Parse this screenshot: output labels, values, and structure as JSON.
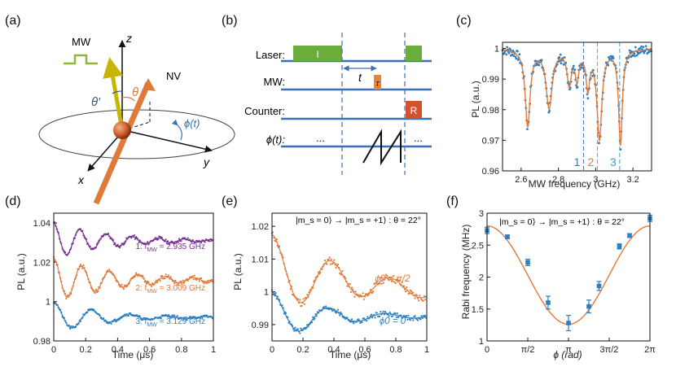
{
  "panels": {
    "a": {
      "label": "(a)",
      "mw": "MW",
      "nv": "NV",
      "z": "z",
      "x": "x",
      "y": "y",
      "theta_prime": "θ′",
      "theta": "θ",
      "phi_t": "ϕ(t)",
      "colors": {
        "mw": "#8db83a",
        "nv": "#e07a3a",
        "sphere": "#d0622e"
      }
    },
    "b": {
      "label": "(b)",
      "rows": [
        "Laser:",
        "MW:",
        "Counter:",
        "ϕ(t):"
      ],
      "laser_text": "I",
      "mw_text": "τ",
      "counter_text": "R",
      "t_label": "t",
      "dots_left": "...",
      "dots_right": "...",
      "colors": {
        "line": "#3c6fb5",
        "laser": "#6aad3d",
        "mw": "#e8843a",
        "counter": "#d0522e"
      }
    },
    "c": {
      "label": "(c)"
    },
    "d": {
      "label": "(d)"
    },
    "e": {
      "label": "(e)"
    },
    "f": {
      "label": "(f)"
    }
  },
  "chart_data": [
    {
      "id": "c",
      "type": "scatter",
      "xlabel": "MW frequency (GHz)",
      "ylabel": "PL (a.u.)",
      "xlim": [
        2.5,
        3.3
      ],
      "ylim": [
        0.96,
        1.002
      ],
      "xticks": [
        "2.6",
        "2.8",
        "3",
        "3.2"
      ],
      "xtick_values": [
        2.6,
        2.8,
        3.0,
        3.2
      ],
      "yticks": [
        "0.96",
        "0.97",
        "0.98",
        "0.99",
        "1"
      ],
      "ytick_values": [
        0.96,
        0.97,
        0.98,
        0.99,
        1.0
      ],
      "dips": [
        {
          "center": 2.635,
          "depth": 0.025,
          "width": 0.016
        },
        {
          "center": 2.75,
          "depth": 0.019,
          "width": 0.02
        },
        {
          "center": 2.858,
          "depth": 0.011,
          "width": 0.014
        },
        {
          "center": 2.9,
          "depth": 0.009,
          "width": 0.012
        },
        {
          "center": 2.958,
          "depth": 0.012,
          "width": 0.012
        },
        {
          "center": 3.02,
          "depth": 0.029,
          "width": 0.016
        },
        {
          "center": 3.133,
          "depth": 0.031,
          "width": 0.012
        }
      ],
      "markers": [
        {
          "label": "1",
          "x": 2.935,
          "color": "#3f74b4"
        },
        {
          "label": "2",
          "x": 3.009,
          "color": "#e07a3a"
        },
        {
          "label": "3",
          "x": 3.129,
          "color": "#3a9fd0"
        }
      ],
      "colors": {
        "points": "#2c7fc0",
        "fit": "#e07a3a",
        "red_line": "#e04040"
      }
    },
    {
      "id": "d",
      "type": "line",
      "xlabel": "Time (μs)",
      "ylabel": "PL (a.u.)",
      "xlim": [
        0,
        1
      ],
      "ylim": [
        0.98,
        1.045
      ],
      "xticks": [
        "0",
        "0.2",
        "0.4",
        "0.6",
        "0.8",
        "1"
      ],
      "xtick_values": [
        0,
        0.2,
        0.4,
        0.6,
        0.8,
        1.0
      ],
      "yticks": [
        "0.98",
        "1",
        "1.02",
        "1.04"
      ],
      "ytick_values": [
        0.98,
        1.0,
        1.02,
        1.04
      ],
      "series": [
        {
          "name": "1: f_MW = 2.935 GHz",
          "legend_prefix": "1: f",
          "legend_sub": "MW",
          "legend_suffix": " = 2.935 GHz",
          "offset": 1.031,
          "amp": 0.009,
          "freq": 6.1,
          "decay": 0.35,
          "color": "#7b3294"
        },
        {
          "name": "2: f_MW = 3.009 GHz",
          "legend_prefix": "2: f",
          "legend_sub": "MW",
          "legend_suffix": " = 3.009 GHz",
          "offset": 1.011,
          "amp": 0.011,
          "freq": 5.7,
          "decay": 0.4,
          "color": "#e07a3a"
        },
        {
          "name": "3: f_MW = 3.129 GHz",
          "legend_prefix": "3: f",
          "legend_sub": "MW",
          "legend_suffix": " = 3.129 GHz",
          "offset": 0.992,
          "amp": 0.008,
          "freq": 4.2,
          "decay": 0.3,
          "color": "#2c7fc0"
        }
      ]
    },
    {
      "id": "e",
      "type": "line",
      "xlabel": "Time (μs)",
      "ylabel": "PL (a.u.)",
      "xlim": [
        0,
        1
      ],
      "ylim": [
        0.985,
        1.024
      ],
      "xticks": [
        "0",
        "0.2",
        "0.4",
        "0.6",
        "0.8",
        "1"
      ],
      "xtick_values": [
        0,
        0.2,
        0.4,
        0.6,
        0.8,
        1.0
      ],
      "yticks": [
        "0.99",
        "1",
        "1.01",
        "1.02"
      ],
      "ytick_values": [
        0.99,
        1.0,
        1.01,
        1.02
      ],
      "annotation": "|m_s = 0⟩ → |m_s = +1⟩ : θ = 22°",
      "series": [
        {
          "name": "ϕ0 = π/2",
          "offset": 1.006,
          "amp": 0.0115,
          "freq": 2.6,
          "decay": 0.55,
          "slope": -0.006,
          "color": "#e07a3a"
        },
        {
          "name": "ϕ0 = 0",
          "offset": 0.9925,
          "amp": 0.0075,
          "freq": 2.7,
          "decay": 0.35,
          "slope": 0.0,
          "color": "#2c7fc0"
        }
      ]
    },
    {
      "id": "f",
      "type": "scatter",
      "xlabel": "ϕ (rad)",
      "ylabel": "Rabi frequency (MHz)",
      "xlim": [
        0,
        6.2832
      ],
      "ylim": [
        1,
        3
      ],
      "xticks": [
        "0",
        "π/2",
        "π",
        "3π/2",
        "2π"
      ],
      "xtick_values": [
        0,
        1.5708,
        3.1416,
        4.7124,
        6.2832
      ],
      "yticks": [
        "1",
        "1.5",
        "2",
        "2.5",
        "3"
      ],
      "ytick_values": [
        1,
        1.5,
        2,
        2.5,
        3
      ],
      "annotation": "|m_s = 0⟩ → |m_s = +1⟩ : θ = 22°",
      "points": [
        {
          "x": 0.0,
          "y": 2.73,
          "err": 0.05
        },
        {
          "x": 0.785,
          "y": 2.63,
          "err": 0.03
        },
        {
          "x": 1.571,
          "y": 2.23,
          "err": 0.05
        },
        {
          "x": 2.356,
          "y": 1.6,
          "err": 0.1
        },
        {
          "x": 3.142,
          "y": 1.28,
          "err": 0.12
        },
        {
          "x": 3.927,
          "y": 1.54,
          "err": 0.1
        },
        {
          "x": 4.32,
          "y": 1.86,
          "err": 0.07
        },
        {
          "x": 5.105,
          "y": 2.48,
          "err": 0.04
        },
        {
          "x": 5.498,
          "y": 2.65,
          "err": 0.03
        },
        {
          "x": 6.283,
          "y": 2.92,
          "err": 0.05
        }
      ],
      "fit": {
        "mean": 2.03,
        "amp": 0.77,
        "phase": 0.0
      },
      "colors": {
        "points": "#2c7fc0",
        "fit": "#e07a3a"
      }
    }
  ]
}
